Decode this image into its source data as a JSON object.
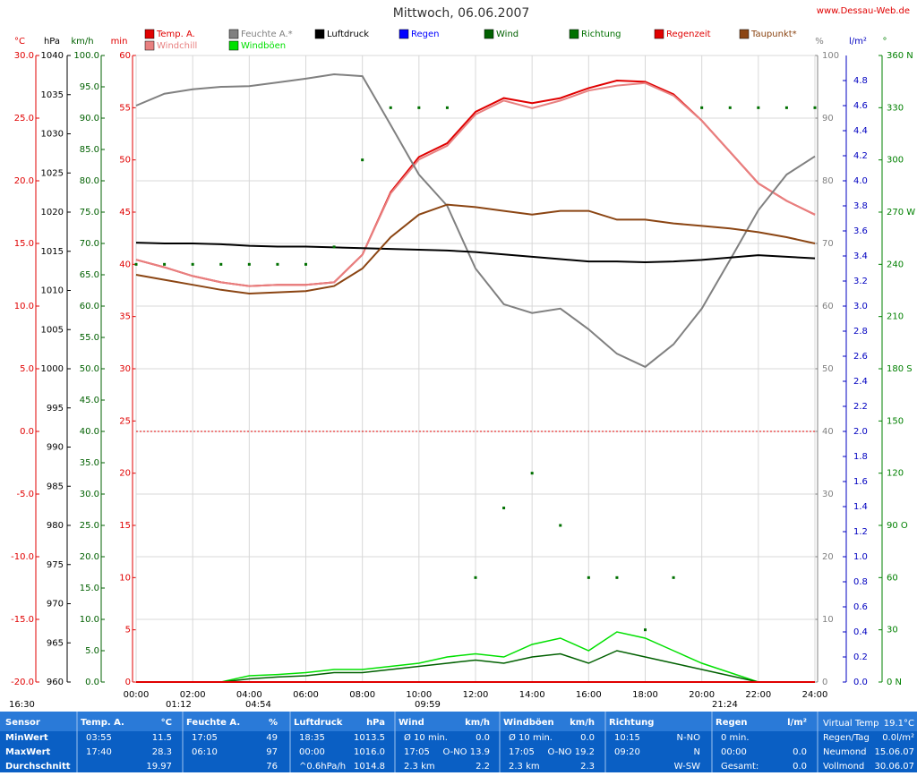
{
  "chart_data": {
    "type": "line",
    "title": "Mittwoch, 06.06.2007",
    "site": "www.Dessau-Web.de",
    "xlim": [
      0,
      24
    ],
    "xticks": [
      {
        "value": 0,
        "label": "00:00"
      },
      {
        "value": 2,
        "label": "02:00"
      },
      {
        "value": 4,
        "label": "04:00"
      },
      {
        "value": 6,
        "label": "06:00"
      },
      {
        "value": 8,
        "label": "08:00"
      },
      {
        "value": 10,
        "label": "10:00"
      },
      {
        "value": 12,
        "label": "12:00"
      },
      {
        "value": 14,
        "label": "14:00"
      },
      {
        "value": 16,
        "label": "16:00"
      },
      {
        "value": 18,
        "label": "18:00"
      },
      {
        "value": 20,
        "label": "20:00"
      },
      {
        "value": 22,
        "label": "22:00"
      },
      {
        "value": 24,
        "label": "24:00"
      }
    ],
    "grid": true,
    "axes": {
      "temp": {
        "label": "°C",
        "color": "#e00000",
        "lim": [
          -20,
          30
        ],
        "ticks": [
          {
            "value": 30,
            "label": "30.0"
          },
          {
            "value": 25,
            "label": "25.0"
          },
          {
            "value": 20,
            "label": "20.0"
          },
          {
            "value": 15,
            "label": "15.0"
          },
          {
            "value": 10,
            "label": "10.0"
          },
          {
            "value": 5,
            "label": "5.0"
          },
          {
            "value": 0,
            "label": "0.0"
          },
          {
            "value": -5,
            "label": "-5.0"
          },
          {
            "value": -10,
            "label": "-10.0"
          },
          {
            "value": -15,
            "label": "-15.0"
          },
          {
            "value": -20,
            "label": "-20.0"
          }
        ]
      },
      "press": {
        "label": "hPa",
        "color": "#000000",
        "lim": [
          960,
          1040
        ],
        "ticks": [
          1040,
          1035,
          1030,
          1025,
          1020,
          1015,
          1010,
          1005,
          1000,
          995,
          990,
          985,
          980,
          975,
          970,
          965,
          960
        ]
      },
      "speed": {
        "label": "km/h",
        "color": "#006000",
        "lim": [
          0,
          100
        ],
        "ticks": [
          {
            "value": 100,
            "label": "100.0"
          },
          {
            "value": 95,
            "label": "95.0"
          },
          {
            "value": 90,
            "label": "90.0"
          },
          {
            "value": 85,
            "label": "85.0"
          },
          {
            "value": 80,
            "label": "80.0"
          },
          {
            "value": 75,
            "label": "75.0"
          },
          {
            "value": 70,
            "label": "70.0"
          },
          {
            "value": 65,
            "label": "65.0"
          },
          {
            "value": 60,
            "label": "60.0"
          },
          {
            "value": 55,
            "label": "55.0"
          },
          {
            "value": 50,
            "label": "50.0"
          },
          {
            "value": 45,
            "label": "45.0"
          },
          {
            "value": 40,
            "label": "40.0"
          },
          {
            "value": 35,
            "label": "35.0"
          },
          {
            "value": 30,
            "label": "30.0"
          },
          {
            "value": 25,
            "label": "25.0"
          },
          {
            "value": 20,
            "label": "20.0"
          },
          {
            "value": 15,
            "label": "15.0"
          },
          {
            "value": 10,
            "label": "10.0"
          },
          {
            "value": 5,
            "label": "5.0"
          },
          {
            "value": 0,
            "label": "0.0"
          }
        ]
      },
      "min": {
        "label": "min",
        "color": "#e00000",
        "lim": [
          0,
          60
        ],
        "ticks": [
          60,
          55,
          50,
          45,
          40,
          35,
          30,
          25,
          20,
          15,
          10,
          5,
          0
        ]
      },
      "hum": {
        "label": "%",
        "color": "#808080",
        "lim": [
          0,
          100
        ],
        "ticks": [
          100,
          90,
          80,
          70,
          60,
          50,
          40,
          30,
          20,
          10,
          0
        ]
      },
      "rain": {
        "label": "l/m²",
        "color": "#0000c0",
        "lim": [
          0,
          5
        ],
        "ticks": [
          {
            "value": 4.8,
            "label": "4.8"
          },
          {
            "value": 4.6,
            "label": "4.6"
          },
          {
            "value": 4.4,
            "label": "4.4"
          },
          {
            "value": 4.2,
            "label": "4.2"
          },
          {
            "value": 4,
            "label": "4.0"
          },
          {
            "value": 3.8,
            "label": "3.8"
          },
          {
            "value": 3.6,
            "label": "3.6"
          },
          {
            "value": 3.4,
            "label": "3.4"
          },
          {
            "value": 3.2,
            "label": "3.2"
          },
          {
            "value": 3,
            "label": "3.0"
          },
          {
            "value": 2.8,
            "label": "2.8"
          },
          {
            "value": 2.6,
            "label": "2.6"
          },
          {
            "value": 2.4,
            "label": "2.4"
          },
          {
            "value": 2.2,
            "label": "2.2"
          },
          {
            "value": 2,
            "label": "2.0"
          },
          {
            "value": 1.8,
            "label": "1.8"
          },
          {
            "value": 1.6,
            "label": "1.6"
          },
          {
            "value": 1.4,
            "label": "1.4"
          },
          {
            "value": 1.2,
            "label": "1.2"
          },
          {
            "value": 1,
            "label": "1.0"
          },
          {
            "value": 0.8,
            "label": "0.8"
          },
          {
            "value": 0.6,
            "label": "0.6"
          },
          {
            "value": 0.4,
            "label": "0.4"
          },
          {
            "value": 0.2,
            "label": "0.2"
          },
          {
            "value": 0,
            "label": "0.0"
          }
        ]
      },
      "dir": {
        "label": "°",
        "color": "#008000",
        "lim": [
          0,
          360
        ],
        "ticks": [
          {
            "value": 360,
            "label": "360 N"
          },
          330,
          300,
          {
            "value": 270,
            "label": "270 W"
          },
          240,
          210,
          {
            "value": 180,
            "label": "180 S"
          },
          150,
          120,
          {
            "value": 90,
            "label": "90 O"
          },
          60,
          30,
          {
            "value": 0,
            "label": "0 N"
          }
        ]
      }
    },
    "reference": {
      "axis": "temp",
      "value": 0,
      "color": "#e00000"
    },
    "x": [
      0,
      1,
      2,
      3,
      4,
      5,
      6,
      7,
      8,
      9,
      10,
      11,
      12,
      13,
      14,
      15,
      16,
      17,
      18,
      19,
      20,
      21,
      22,
      23,
      24
    ],
    "series": [
      {
        "name": "Temp. A.",
        "axis": "temp",
        "color": "#e00000",
        "values": [
          13.7,
          13.1,
          12.4,
          11.9,
          11.6,
          11.7,
          11.7,
          11.9,
          14.1,
          19.1,
          21.9,
          23.0,
          25.5,
          26.6,
          26.2,
          26.6,
          27.4,
          28.0,
          27.9,
          26.9,
          24.8,
          22.3,
          19.8,
          18.4,
          17.3
        ]
      },
      {
        "name": "Windchill",
        "axis": "temp",
        "color": "#e88080",
        "values": [
          13.7,
          13.1,
          12.4,
          11.9,
          11.6,
          11.7,
          11.7,
          11.9,
          14.1,
          19.0,
          21.7,
          22.8,
          25.3,
          26.4,
          25.8,
          26.4,
          27.2,
          27.6,
          27.8,
          26.8,
          24.8,
          22.3,
          19.8,
          18.4,
          17.3
        ]
      },
      {
        "name": "Feuchte A.*",
        "axis": "hum",
        "color": "#808080",
        "values": [
          92,
          93.9,
          94.6,
          95,
          95.1,
          95.7,
          96.3,
          97,
          96.7,
          88.9,
          81,
          76,
          66,
          60.3,
          58.9,
          59.6,
          56.3,
          52.4,
          50.3,
          53.9,
          59.6,
          67.4,
          75.3,
          81,
          83.9
        ]
      },
      {
        "name": "Windböen",
        "axis": "speed",
        "color": "#00e000",
        "values": [
          0,
          0,
          0,
          0,
          1,
          1.2,
          1.5,
          2,
          2,
          2.5,
          3,
          4,
          4.5,
          4,
          6,
          7,
          5,
          8,
          7,
          5,
          3,
          1.5,
          0,
          0,
          0
        ]
      },
      {
        "name": "Luftdruck",
        "axis": "press",
        "color": "#000000",
        "values": [
          1016.1,
          1016.0,
          1016.0,
          1015.9,
          1015.7,
          1015.6,
          1015.6,
          1015.5,
          1015.4,
          1015.3,
          1015.2,
          1015.1,
          1014.9,
          1014.6,
          1014.3,
          1014.0,
          1013.7,
          1013.7,
          1013.6,
          1013.7,
          1013.9,
          1014.2,
          1014.5,
          1014.3,
          1014.1
        ]
      },
      {
        "name": "Regen",
        "axis": "rain",
        "color": "#0000ff",
        "values": [
          0,
          0,
          0,
          0,
          0,
          0,
          0,
          0,
          0,
          0,
          0,
          0,
          0,
          0,
          0,
          0,
          0,
          0,
          0,
          0,
          0,
          0,
          0,
          0,
          0
        ]
      },
      {
        "name": "Wind",
        "axis": "speed",
        "color": "#006000",
        "values": [
          0,
          0,
          0,
          0,
          0.5,
          0.8,
          1,
          1.5,
          1.5,
          2,
          2.5,
          3,
          3.5,
          3,
          4,
          4.5,
          3,
          5,
          4,
          3,
          2,
          1,
          0,
          0,
          0
        ]
      },
      {
        "name": "Richtung",
        "axis": "dir",
        "color": "#007000",
        "marker": "dot",
        "values": [
          240,
          240,
          240,
          240,
          240,
          240,
          240,
          250,
          300,
          330,
          330,
          330,
          60,
          100,
          120,
          90,
          60,
          60,
          30,
          60,
          330,
          330,
          330,
          330,
          330
        ]
      },
      {
        "name": "Regenzeit",
        "axis": "min",
        "color": "#e00000",
        "values": [
          0,
          0,
          0,
          0,
          0,
          0,
          0,
          0,
          0,
          0,
          0,
          0,
          0,
          0,
          0,
          0,
          0,
          0,
          0,
          0,
          0,
          0,
          0,
          0,
          0
        ]
      },
      {
        "name": "Taupunkt*",
        "axis": "temp",
        "color": "#8b4513",
        "values": [
          12.5,
          12.1,
          11.7,
          11.3,
          11.0,
          11.1,
          11.2,
          11.6,
          13.0,
          15.5,
          17.3,
          18.1,
          17.9,
          17.6,
          17.3,
          17.6,
          17.6,
          16.9,
          16.9,
          16.6,
          16.4,
          16.2,
          15.9,
          15.5,
          15.0
        ]
      }
    ],
    "markers": [
      "16:30",
      "01:12",
      "04:54",
      "09:59",
      "21:24"
    ]
  },
  "table": {
    "corner": "Sensor",
    "columns": [
      {
        "title": "Temp. A.",
        "unit": "°C"
      },
      {
        "title": "Feuchte A.",
        "unit": "%"
      },
      {
        "title": "Luftdruck",
        "unit": "hPa"
      },
      {
        "title": "Wind",
        "unit": "km/h"
      },
      {
        "title": "Windböen",
        "unit": "km/h"
      },
      {
        "title": "Richtung"
      },
      {
        "title": "Regen",
        "unit": "l/m²"
      }
    ],
    "rows": [
      {
        "label": "MinWert",
        "cells": [
          {
            "time": "03:55",
            "value": "11.5"
          },
          {
            "time": "17:05",
            "value": "49"
          },
          {
            "time": "18:35",
            "value": "1013.5"
          },
          {
            "time": "Ø 10 min.",
            "value": "0.0"
          },
          {
            "time": "Ø 10 min.",
            "value": "0.0"
          },
          {
            "time": "10:15",
            "value": "N-NO"
          },
          {
            "time": "0 min."
          }
        ]
      },
      {
        "label": "MaxWert",
        "cells": [
          {
            "time": "17:40",
            "value": "28.3"
          },
          {
            "time": "06:10",
            "value": "97"
          },
          {
            "time": "00:00",
            "value": "1016.0"
          },
          {
            "time": "17:05",
            "value": "O-NO 13.9"
          },
          {
            "time": "17:05",
            "value": "O-NO 19.2"
          },
          {
            "time": "09:20",
            "value": "N"
          },
          {
            "time": "00:00",
            "value": "0.0"
          }
        ]
      },
      {
        "label": "Durchschnitt",
        "cells": [
          {
            "value": "19.97"
          },
          {
            "value": "76"
          },
          {
            "time": "^0.6hPa/h",
            "value": "1014.8"
          },
          {
            "time": "2.3 km",
            "value": "2.2"
          },
          {
            "time": "2.3 km",
            "value": "2.3"
          },
          {
            "value": "W-SW"
          },
          {
            "time": "Gesamt:",
            "value": "0.0"
          }
        ]
      }
    ],
    "info": [
      [
        "Virtual Temp",
        "19.1°C"
      ],
      [
        "Regen/Tag",
        "0.0l/m²"
      ],
      [
        "Neumond",
        "15.06.07"
      ],
      [
        "Vollmond",
        "30.06.07"
      ]
    ]
  }
}
